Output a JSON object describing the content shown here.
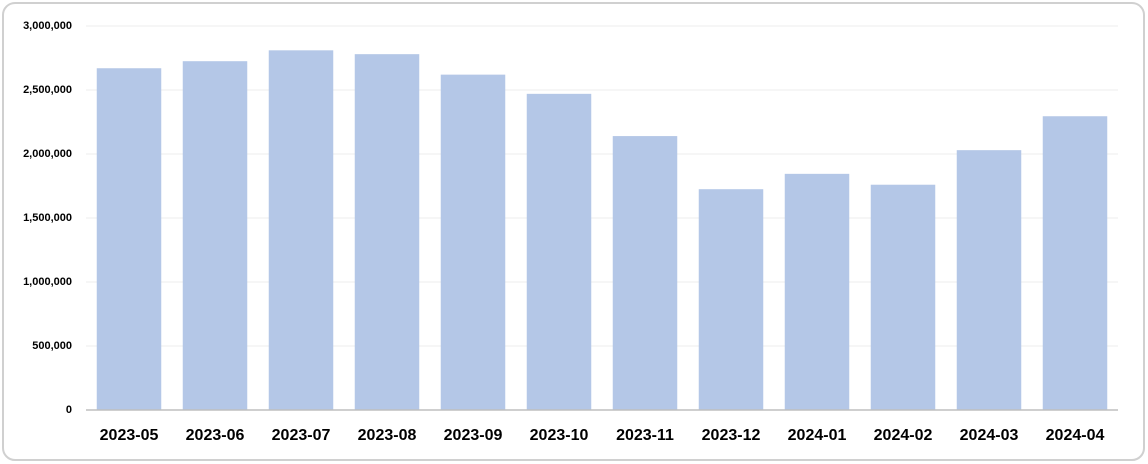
{
  "chart_data": {
    "type": "bar",
    "categories": [
      "2023-05",
      "2023-06",
      "2023-07",
      "2023-08",
      "2023-09",
      "2023-10",
      "2023-11",
      "2023-12",
      "2024-01",
      "2024-02",
      "2024-03",
      "2024-04"
    ],
    "values": [
      2670000,
      2725000,
      2810000,
      2780000,
      2620000,
      2470000,
      2140000,
      1725000,
      1845000,
      1760000,
      2030000,
      2295000
    ],
    "color": "#b4c7e7",
    "ylim": [
      0,
      3000000
    ],
    "yticks": [
      0,
      {
        "value": 500000,
        "label": "500,000"
      },
      {
        "value": 1000000,
        "label": "1,000,000"
      },
      {
        "value": 1500000,
        "label": "1,500,000"
      },
      {
        "value": 2000000,
        "label": "2,000,000"
      },
      {
        "value": 2500000,
        "label": "2,500,000"
      },
      {
        "value": 3000000,
        "label": "3,000,000"
      }
    ],
    "grid": true
  }
}
